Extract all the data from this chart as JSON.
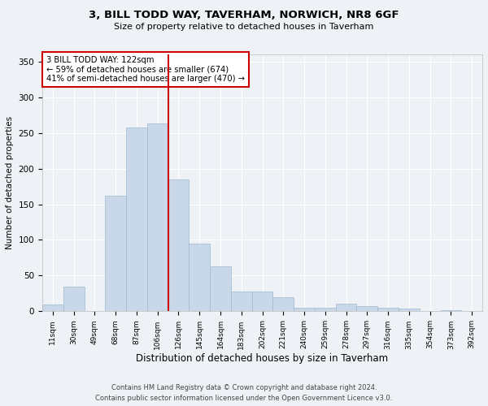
{
  "title": "3, BILL TODD WAY, TAVERHAM, NORWICH, NR8 6GF",
  "subtitle": "Size of property relative to detached houses in Taverham",
  "xlabel": "Distribution of detached houses by size in Taverham",
  "ylabel": "Number of detached properties",
  "categories": [
    "11sqm",
    "30sqm",
    "49sqm",
    "68sqm",
    "87sqm",
    "106sqm",
    "126sqm",
    "145sqm",
    "164sqm",
    "183sqm",
    "202sqm",
    "221sqm",
    "240sqm",
    "259sqm",
    "278sqm",
    "297sqm",
    "316sqm",
    "335sqm",
    "354sqm",
    "373sqm",
    "392sqm"
  ],
  "values": [
    10,
    35,
    0,
    162,
    258,
    263,
    185,
    95,
    63,
    28,
    28,
    20,
    5,
    5,
    11,
    7,
    5,
    4,
    0,
    2,
    0
  ],
  "bar_color": "#c8d8e8",
  "bar_edge_color": "#a0b8d0",
  "property_line_label": "3 BILL TODD WAY: 122sqm",
  "annotation_line1": "← 59% of detached houses are smaller (674)",
  "annotation_line2": "41% of semi-detached houses are larger (470) →",
  "line_color": "#cc0000",
  "background_color": "#eef2f7",
  "plot_bg_color": "#eef2f7",
  "ylim": [
    0,
    360
  ],
  "yticks": [
    0,
    50,
    100,
    150,
    200,
    250,
    300,
    350
  ],
  "footer1": "Contains HM Land Registry data © Crown copyright and database right 2024.",
  "footer2": "Contains public sector information licensed under the Open Government Licence v3.0."
}
